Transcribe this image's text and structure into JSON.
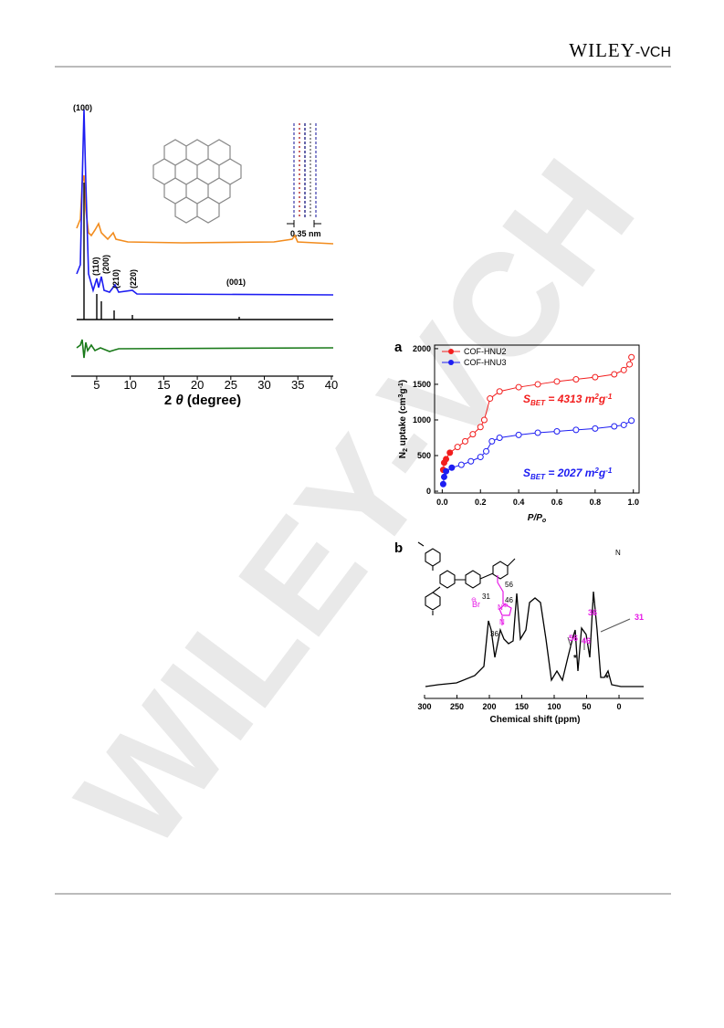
{
  "header": {
    "publisher": "WILEY",
    "publisher_suffix": "-VCH"
  },
  "watermark": "WILEY-VCH",
  "figure_xrd": {
    "peak_labels": [
      "(100)",
      "(110)",
      "(200)",
      "(210)",
      "(220)",
      "(001)"
    ],
    "spacing_label": "0.35 nm",
    "x_label": [
      "2 ",
      "θ",
      " (degree)"
    ],
    "xlim": [
      1.2,
      40
    ],
    "xticks": [
      5,
      10,
      15,
      20,
      25,
      30,
      35,
      40
    ]
  },
  "figure_a": {
    "type": "line",
    "panel": "a",
    "y_label": [
      "N",
      "2",
      " uptake (cm",
      "3",
      "g",
      "-1",
      ")"
    ],
    "x_label": [
      "P/P",
      "o"
    ],
    "xlim": [
      -0.04,
      1.03
    ],
    "xticks": [
      {
        "value": 0,
        "label": "0.0"
      },
      0.2,
      0.4,
      0.6,
      0.8,
      {
        "value": 1,
        "label": "1.0"
      }
    ],
    "ylim": [
      -25,
      2050
    ],
    "yticks": [
      0,
      500,
      1000,
      1500,
      2000
    ],
    "series": [
      {
        "name": "COF-HNU2",
        "color": "#f21d1d",
        "x": [
          0.005,
          0.01,
          0.02,
          0.04,
          0.08,
          0.12,
          0.16,
          0.2,
          0.22,
          0.25,
          0.3,
          0.4,
          0.5,
          0.6,
          0.7,
          0.8,
          0.9,
          0.95,
          0.98,
          0.99
        ],
        "values": [
          300,
          400,
          450,
          540,
          620,
          700,
          800,
          900,
          1000,
          1300,
          1400,
          1460,
          1500,
          1540,
          1570,
          1600,
          1640,
          1700,
          1780,
          1880
        ],
        "annotation": [
          "S",
          "BET",
          " = 4313 m",
          "2",
          "g",
          "-1"
        ]
      },
      {
        "name": "COF-HNU3",
        "color": "#1d1df2",
        "x": [
          0.005,
          0.01,
          0.02,
          0.05,
          0.1,
          0.15,
          0.2,
          0.23,
          0.26,
          0.3,
          0.4,
          0.5,
          0.6,
          0.7,
          0.8,
          0.9,
          0.95,
          0.99
        ],
        "values": [
          100,
          200,
          280,
          330,
          370,
          420,
          480,
          560,
          700,
          750,
          790,
          820,
          840,
          860,
          880,
          910,
          930,
          990
        ],
        "annotation": [
          "S",
          "BET",
          " = 2027 m",
          "2",
          "g",
          "-1"
        ]
      }
    ]
  },
  "figure_b": {
    "panel": "b",
    "x_label": "Chemical shift (ppm)",
    "xlim": [
      300,
      -38
    ],
    "xticks": [
      300,
      250,
      200,
      150,
      100,
      50,
      0
    ],
    "peak_labels": [
      "36",
      "31",
      "56",
      "46"
    ],
    "structure_labels": [
      "56",
      "31",
      "46",
      "36",
      "Br",
      "⊖",
      "N",
      "⊕",
      "N",
      "N"
    ]
  }
}
